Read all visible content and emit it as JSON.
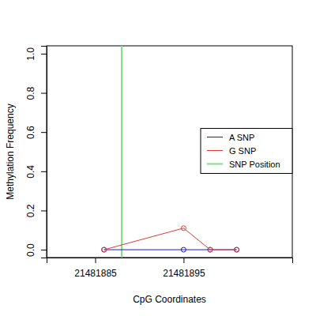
{
  "chart_data": {
    "type": "line",
    "x_label": "CpG Coordinates",
    "y_label": "Methylation Frequency",
    "xlim": [
      21481879.5,
      21481907.3
    ],
    "xticks": [
      21481885,
      21481895
    ],
    "ylim": [
      -0.04,
      1.04
    ],
    "yticks": [
      {
        "value": 0,
        "label": "0.0"
      },
      0.2,
      0.4,
      0.6,
      0.8,
      {
        "value": 1,
        "label": "1.0"
      }
    ],
    "legend": "right",
    "grid": false,
    "series": [
      {
        "name": "A SNP",
        "color": "#1a1acc",
        "marker": "open-circle",
        "line_style": "solid",
        "x": [
          21481886,
          21481895,
          21481898,
          21481901
        ],
        "values": [
          0,
          0,
          0,
          0
        ]
      },
      {
        "name": "G SNP",
        "color": "#e03a3a",
        "marker": "open-circle",
        "line_style": "solid",
        "x": [
          21481886,
          21481895,
          21481898,
          21481901
        ],
        "values": [
          0,
          0.11,
          0,
          0
        ]
      },
      {
        "name": "SNP Position",
        "color": "#7ee07e",
        "type": "vline",
        "x": [
          21481888
        ]
      }
    ]
  }
}
